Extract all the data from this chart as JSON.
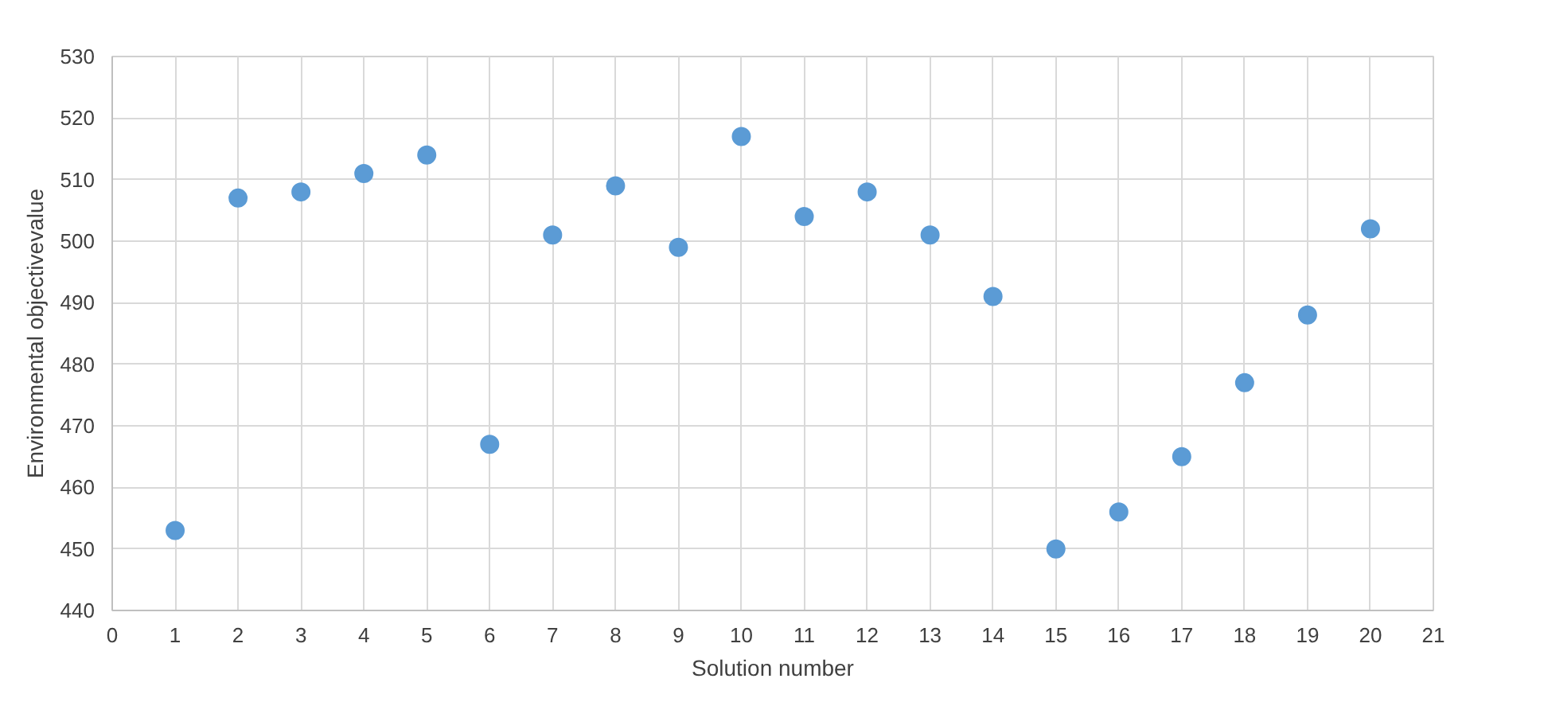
{
  "chart_data": {
    "type": "scatter",
    "xlabel": "Solution number",
    "ylabel": "Environmental objectivevalue",
    "x": [
      1,
      2,
      3,
      4,
      5,
      6,
      7,
      8,
      9,
      10,
      11,
      12,
      13,
      14,
      15,
      16,
      17,
      18,
      19,
      20
    ],
    "series": [
      {
        "color": "#5b9bd5",
        "values": [
          453,
          507,
          508,
          511,
          514,
          467,
          501,
          509,
          499,
          517,
          504,
          508,
          501,
          491,
          450,
          456,
          465,
          477,
          488,
          502
        ]
      }
    ],
    "xlim": [
      0,
      21
    ],
    "xticks": [
      0,
      1,
      2,
      3,
      4,
      5,
      6,
      7,
      8,
      9,
      10,
      11,
      12,
      13,
      14,
      15,
      16,
      17,
      18,
      19,
      20,
      21
    ],
    "ylim": [
      440,
      530
    ],
    "yticks": [
      440,
      450,
      460,
      470,
      480,
      490,
      500,
      510,
      520,
      530
    ],
    "grid": true,
    "marker": "circle"
  }
}
